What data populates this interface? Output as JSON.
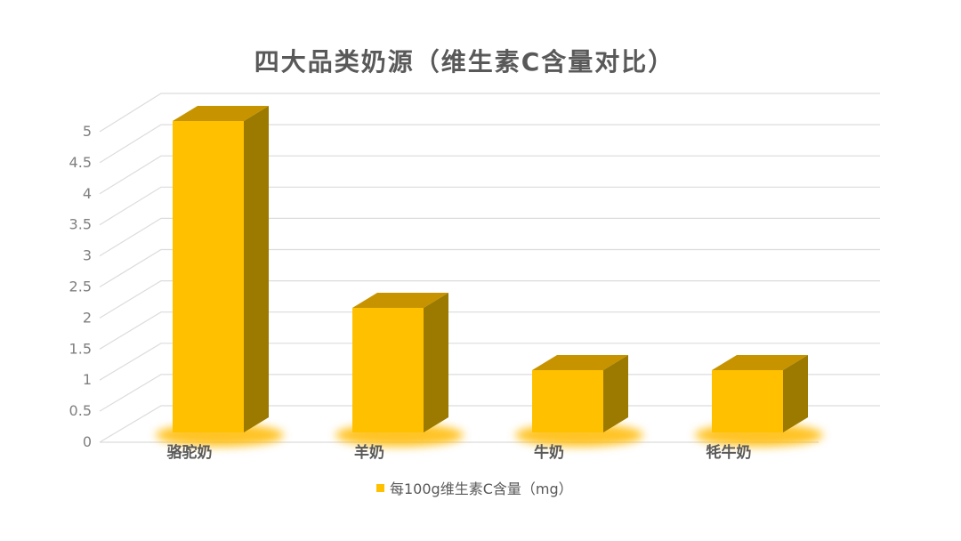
{
  "chart_data": {
    "type": "bar",
    "style": "3d-column",
    "title": "四大品类奶源（维生素C含量对比）",
    "legend": "每100g维生素C含量（mg）",
    "legend_position": "bottom",
    "categories": [
      "骆驼奶",
      "羊奶",
      "牛奶",
      "牦牛奶"
    ],
    "series": [
      {
        "name": "每100g维生素C含量（mg）",
        "values": [
          5,
          2,
          1,
          1
        ]
      }
    ],
    "values": [
      5,
      2,
      1,
      1
    ],
    "xlabel": "",
    "ylabel": "",
    "ylim": [
      0,
      5
    ],
    "ytick_step": 0.5,
    "ytick_labels": [
      "0",
      "0.5",
      "1",
      "1.5",
      "2",
      "2.5",
      "3",
      "3.5",
      "4",
      "4.5",
      "5"
    ],
    "grid": true,
    "colors": {
      "bar_front": "#FFC000",
      "bar_top": "#C79400",
      "bar_side": "#9C7A00",
      "glow": "#FFB900",
      "gridline": "#DCDCDC",
      "title_text": "#595959",
      "axis_text": "#7F7F7F",
      "category_text": "#595959",
      "legend_text": "#595959",
      "background": "#FFFFFF"
    }
  }
}
